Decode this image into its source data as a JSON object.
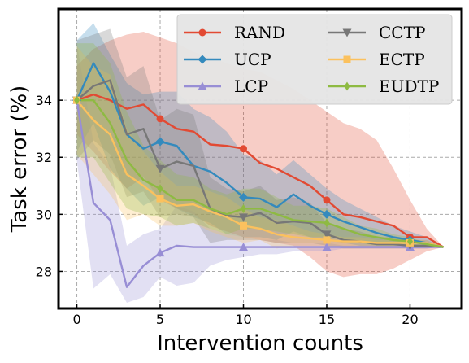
{
  "chart_data": {
    "type": "line",
    "xlabel": "Intervention counts",
    "ylabel": "Task error (%)",
    "xlim": [
      -1.1,
      23.1
    ],
    "ylim": [
      26.7,
      37.2
    ],
    "x_ticks": [
      0,
      5,
      10,
      15,
      20
    ],
    "y_ticks": [
      28,
      30,
      32,
      34
    ],
    "x_tick_labels": [
      "0",
      "5",
      "10",
      "15",
      "20"
    ],
    "y_tick_labels": [
      "28",
      "30",
      "32",
      "34"
    ],
    "grid": true,
    "grid_style": "dashed",
    "legend_position": "top-right",
    "legend_columns": 2,
    "x": [
      0,
      1,
      2,
      3,
      4,
      5,
      6,
      7,
      8,
      9,
      10,
      11,
      12,
      13,
      14,
      15,
      16,
      17,
      18,
      19,
      20,
      21,
      22
    ],
    "series": [
      {
        "name": "RAND",
        "color": "#e24a33",
        "marker": "circle",
        "values": [
          34.0,
          34.2,
          34.0,
          33.7,
          33.85,
          33.35,
          33.0,
          32.9,
          32.45,
          32.4,
          32.3,
          31.8,
          31.6,
          31.3,
          31.0,
          30.5,
          30.0,
          29.9,
          29.75,
          29.6,
          29.2,
          29.2,
          28.85
        ],
        "lower": [
          32.8,
          32.2,
          31.5,
          30.9,
          31.3,
          30.5,
          30.2,
          30.0,
          29.6,
          29.4,
          29.2,
          29.1,
          29.0,
          28.9,
          28.5,
          28.0,
          27.8,
          27.9,
          27.9,
          28.1,
          28.4,
          28.7,
          28.85
        ],
        "upper": [
          35.2,
          35.8,
          36.1,
          36.3,
          36.4,
          36.2,
          36.0,
          35.7,
          35.5,
          35.3,
          35.1,
          35.0,
          34.7,
          34.4,
          34.0,
          33.6,
          33.2,
          33.0,
          32.6,
          31.6,
          30.5,
          29.5,
          28.85
        ]
      },
      {
        "name": "UCP",
        "color": "#348abd",
        "marker": "diamond",
        "values": [
          34.0,
          35.3,
          34.3,
          32.8,
          32.3,
          32.55,
          32.4,
          31.7,
          31.5,
          31.1,
          30.6,
          30.55,
          30.25,
          30.7,
          30.3,
          30.0,
          29.75,
          29.55,
          29.35,
          29.2,
          29.1,
          29.0,
          28.85
        ],
        "lower": [
          32.2,
          33.2,
          31.6,
          30.9,
          30.3,
          30.6,
          30.2,
          29.9,
          29.7,
          29.3,
          29.2,
          29.2,
          29.1,
          29.4,
          29.2,
          29.1,
          29.0,
          28.9,
          28.9,
          28.9,
          28.9,
          28.9,
          28.85
        ],
        "upper": [
          36.1,
          36.7,
          35.6,
          34.6,
          34.2,
          34.3,
          34.3,
          33.7,
          33.4,
          32.9,
          32.1,
          31.9,
          31.4,
          31.9,
          31.4,
          30.9,
          30.5,
          30.2,
          29.9,
          29.6,
          29.4,
          29.2,
          28.85
        ]
      },
      {
        "name": "LCP",
        "color": "#988ed5",
        "marker": "triangle",
        "values": [
          34.0,
          30.4,
          29.8,
          27.45,
          28.2,
          28.65,
          28.9,
          28.85,
          28.85,
          28.85,
          28.85,
          28.85,
          28.85,
          28.85,
          28.85,
          28.85,
          28.85,
          28.85,
          28.85,
          28.85,
          28.85,
          28.85,
          28.85
        ],
        "lower": [
          31.9,
          27.4,
          27.9,
          26.9,
          27.1,
          27.8,
          27.5,
          27.6,
          28.2,
          28.4,
          28.5,
          28.6,
          28.6,
          28.7,
          28.7,
          28.7,
          28.8,
          28.8,
          28.8,
          28.8,
          28.8,
          28.8,
          28.85
        ],
        "upper": [
          36.0,
          32.5,
          31.7,
          28.9,
          29.3,
          29.5,
          30.3,
          30.1,
          29.5,
          29.3,
          29.2,
          29.1,
          29.1,
          29.0,
          29.0,
          29.0,
          28.9,
          28.9,
          28.9,
          28.9,
          28.9,
          28.9,
          28.85
        ]
      },
      {
        "name": "CCTP",
        "color": "#777777",
        "marker": "triangle-down",
        "values": [
          34.0,
          34.5,
          34.7,
          32.8,
          33.0,
          31.6,
          31.85,
          31.7,
          30.2,
          29.95,
          29.9,
          30.05,
          29.7,
          29.75,
          29.7,
          29.3,
          29.1,
          29.05,
          28.95,
          28.95,
          28.9,
          28.9,
          28.85
        ],
        "lower": [
          31.9,
          32.6,
          32.1,
          30.6,
          30.8,
          29.9,
          30.0,
          29.9,
          29.0,
          29.1,
          29.1,
          29.1,
          29.0,
          29.0,
          29.0,
          28.9,
          28.8,
          28.8,
          28.8,
          28.8,
          28.8,
          28.8,
          28.85
        ],
        "upper": [
          36.1,
          36.3,
          36.5,
          34.8,
          35.2,
          33.3,
          33.7,
          33.5,
          31.3,
          30.9,
          30.8,
          31.0,
          30.5,
          30.6,
          30.4,
          29.7,
          29.5,
          29.4,
          29.2,
          29.2,
          29.1,
          29.1,
          28.85
        ]
      },
      {
        "name": "ECTP",
        "color": "#fbc15e",
        "marker": "square",
        "values": [
          34.0,
          33.3,
          32.8,
          31.4,
          31.0,
          30.55,
          30.3,
          30.35,
          30.1,
          29.9,
          29.6,
          29.5,
          29.3,
          29.2,
          29.15,
          29.1,
          29.05,
          29.05,
          29.0,
          29.0,
          29.0,
          29.0,
          28.85
        ],
        "lower": [
          32.1,
          31.4,
          30.7,
          29.8,
          30.0,
          29.6,
          29.6,
          29.7,
          29.4,
          29.2,
          29.0,
          29.1,
          28.8,
          28.9,
          28.9,
          28.9,
          28.9,
          28.9,
          28.9,
          28.9,
          28.9,
          28.9,
          28.85
        ],
        "upper": [
          35.9,
          35.2,
          34.9,
          33.0,
          32.2,
          31.5,
          31.0,
          31.0,
          30.8,
          30.6,
          30.2,
          29.9,
          29.8,
          29.6,
          29.4,
          29.3,
          29.2,
          29.2,
          29.1,
          29.1,
          29.1,
          29.1,
          28.85
        ]
      },
      {
        "name": "EUDTP",
        "color": "#8eba42",
        "marker": "thin-diamond",
        "values": [
          34.0,
          34.0,
          33.2,
          31.9,
          31.2,
          30.9,
          30.5,
          30.5,
          30.2,
          30.0,
          30.2,
          30.2,
          30.0,
          29.8,
          29.75,
          29.7,
          29.5,
          29.3,
          29.2,
          29.1,
          29.05,
          28.95,
          28.85
        ],
        "lower": [
          32.0,
          32.0,
          31.1,
          30.2,
          30.0,
          29.9,
          29.6,
          29.7,
          29.5,
          29.3,
          29.5,
          29.5,
          29.4,
          29.3,
          29.2,
          29.2,
          29.1,
          29.0,
          28.9,
          28.9,
          28.9,
          28.9,
          28.85
        ],
        "upper": [
          36.0,
          36.0,
          35.3,
          33.6,
          32.4,
          31.9,
          31.4,
          31.3,
          30.9,
          30.7,
          30.9,
          30.9,
          30.6,
          30.3,
          30.3,
          30.2,
          29.9,
          29.6,
          29.5,
          29.3,
          29.2,
          29.0,
          28.85
        ]
      }
    ],
    "marker_every": 5,
    "marker_offset": [
      0,
      0,
      0,
      0,
      0,
      0
    ]
  }
}
